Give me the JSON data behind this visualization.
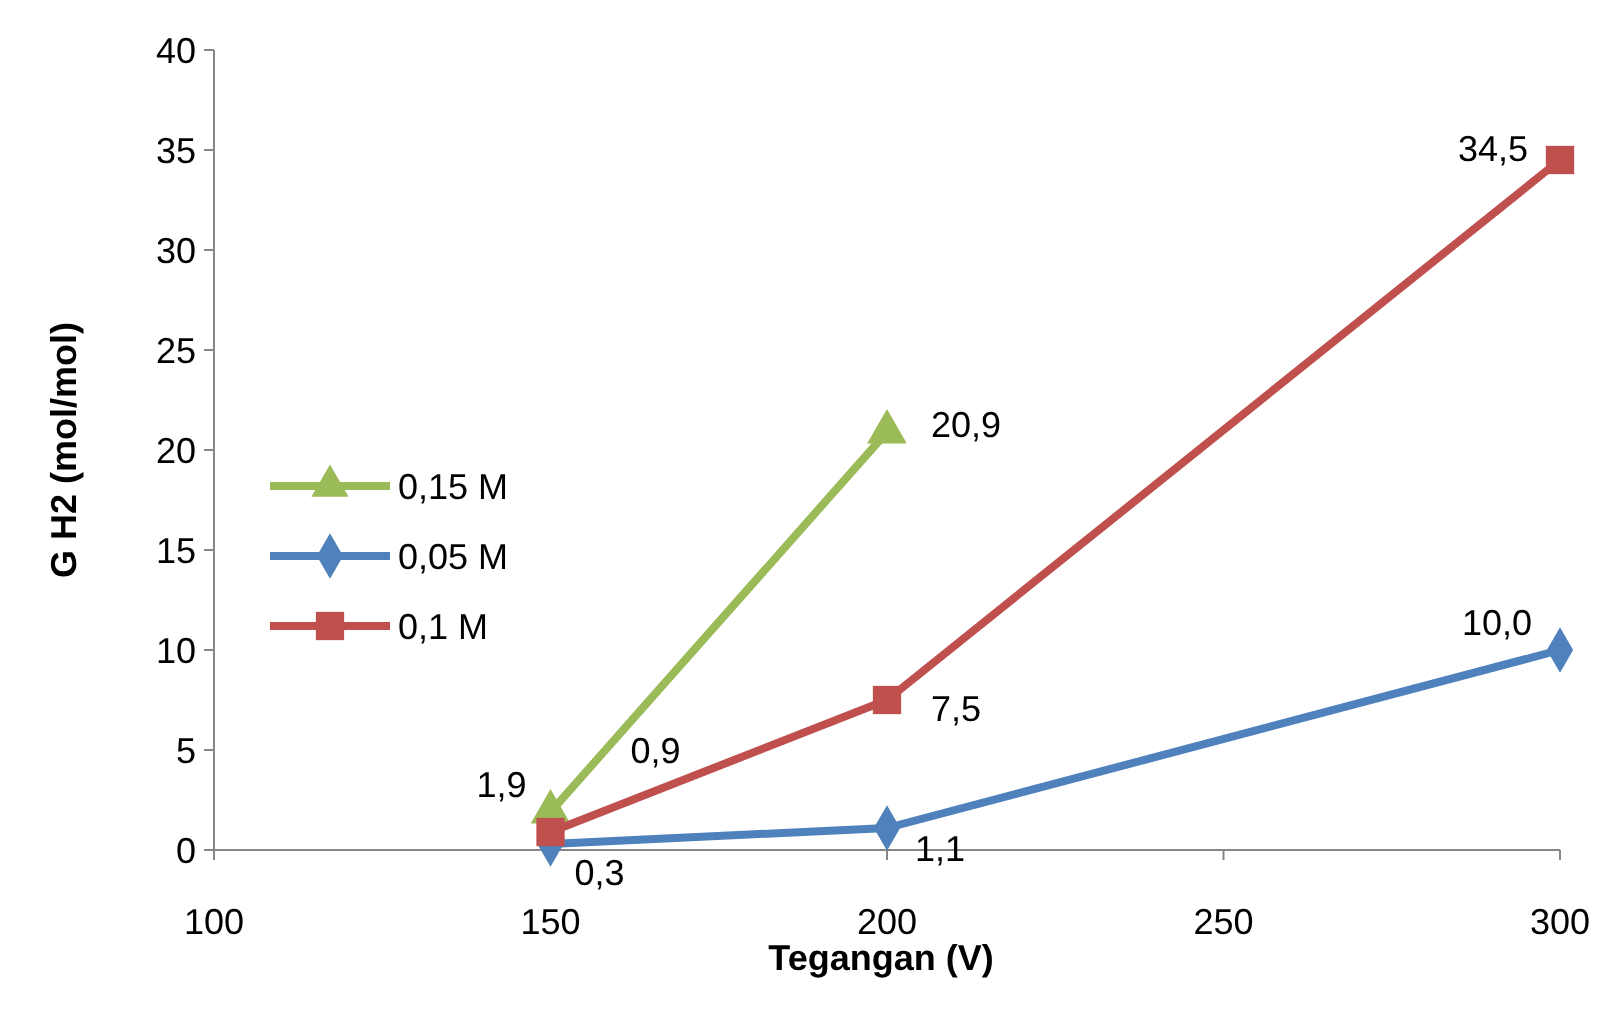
{
  "chart_data": {
    "type": "line",
    "xlabel": "Tegangan (V)",
    "ylabel": "G H2 (mol/mol)",
    "xlim": [
      100,
      300
    ],
    "xticks": [
      100,
      150,
      200,
      250,
      300
    ],
    "ylim": [
      0,
      40
    ],
    "yticks": [
      0,
      5,
      10,
      15,
      20,
      25,
      30,
      35,
      40
    ],
    "grid": false,
    "legend": "left",
    "line_style": "solid",
    "series": [
      {
        "name": "0,15 M",
        "color": "#9bbb59",
        "marker": "triangle",
        "x": [
          150,
          200
        ],
        "values": [
          1.9,
          20.9
        ],
        "value_labels": [
          "1,9",
          "20,9"
        ]
      },
      {
        "name": "0,05 M",
        "color": "#4f81bd",
        "marker": "diamond",
        "x": [
          150,
          200,
          300
        ],
        "values": [
          0.3,
          1.1,
          10.0
        ],
        "value_labels": [
          "0,3",
          "1,1",
          "10,0"
        ]
      },
      {
        "name": "0,1 M",
        "color": "#c0504d",
        "marker": "square",
        "x": [
          150,
          200,
          300
        ],
        "values": [
          0.9,
          7.5,
          34.5
        ],
        "value_labels": [
          "0,9",
          "7,5",
          "34,5"
        ]
      }
    ]
  }
}
